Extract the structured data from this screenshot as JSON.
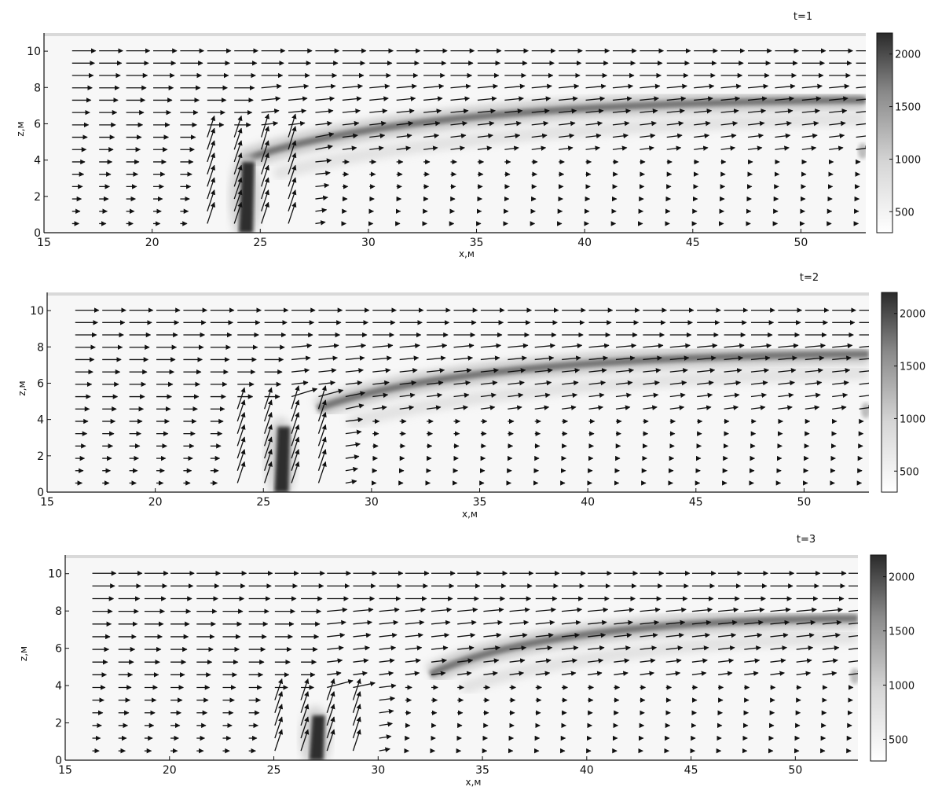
{
  "chart_data": [
    {
      "type": "heatmap",
      "time_label": "t=1",
      "xlabel": "x,м",
      "ylabel": "z,м",
      "xlim": [
        15,
        53
      ],
      "ylim": [
        0,
        11
      ],
      "xticks": [
        "15",
        "20",
        "25",
        "30",
        "35",
        "40",
        "45",
        "50"
      ],
      "yticks": [
        "0",
        "2",
        "4",
        "6",
        "8",
        "10"
      ],
      "colorbar": {
        "range": [
          300,
          2200
        ],
        "ticks": [
          "500",
          "1000",
          "1500",
          "2000"
        ]
      },
      "grayscale": true,
      "vector_field": true,
      "source_column": {
        "x": 24.3,
        "z_bottom": 0,
        "z_top": 3.9
      },
      "plume": {
        "x_start": 24.2,
        "z_start": 4.0,
        "x_end": 53,
        "z_end": 7.3
      },
      "colorbar_position": "right"
    },
    {
      "type": "heatmap",
      "time_label": "t=2",
      "xlabel": "x,м",
      "ylabel": "z,м",
      "xlim": [
        15,
        53
      ],
      "ylim": [
        0,
        11
      ],
      "xticks": [
        "15",
        "20",
        "25",
        "30",
        "35",
        "40",
        "45",
        "50"
      ],
      "yticks": [
        "0",
        "2",
        "4",
        "6",
        "8",
        "10"
      ],
      "colorbar": {
        "range": [
          300,
          2200
        ],
        "ticks": [
          "500",
          "1000",
          "1500",
          "2000"
        ]
      },
      "grayscale": true,
      "vector_field": true,
      "source_column": {
        "x": 25.8,
        "z_bottom": 0,
        "z_top": 3.6
      },
      "plume": {
        "x_start": 27.5,
        "z_start": 4.6,
        "x_end": 53,
        "z_end": 7.6
      },
      "colorbar_position": "right"
    },
    {
      "type": "heatmap",
      "time_label": "t=3",
      "xlabel": "x,м",
      "ylabel": "z,м",
      "xlim": [
        15,
        53
      ],
      "ylim": [
        0,
        11
      ],
      "xticks": [
        "15",
        "20",
        "25",
        "30",
        "35",
        "40",
        "45",
        "50"
      ],
      "yticks": [
        "0",
        "2",
        "4",
        "6",
        "8",
        "10"
      ],
      "colorbar": {
        "range": [
          300,
          2200
        ],
        "ticks": [
          "500",
          "1000",
          "1500",
          "2000"
        ]
      },
      "grayscale": true,
      "vector_field": true,
      "source_column": {
        "x": 27.0,
        "z_bottom": 0,
        "z_top": 2.4
      },
      "plume": {
        "x_start": 32.5,
        "z_start": 4.6,
        "x_end": 53,
        "z_end": 7.6
      },
      "colorbar_position": "right"
    }
  ]
}
